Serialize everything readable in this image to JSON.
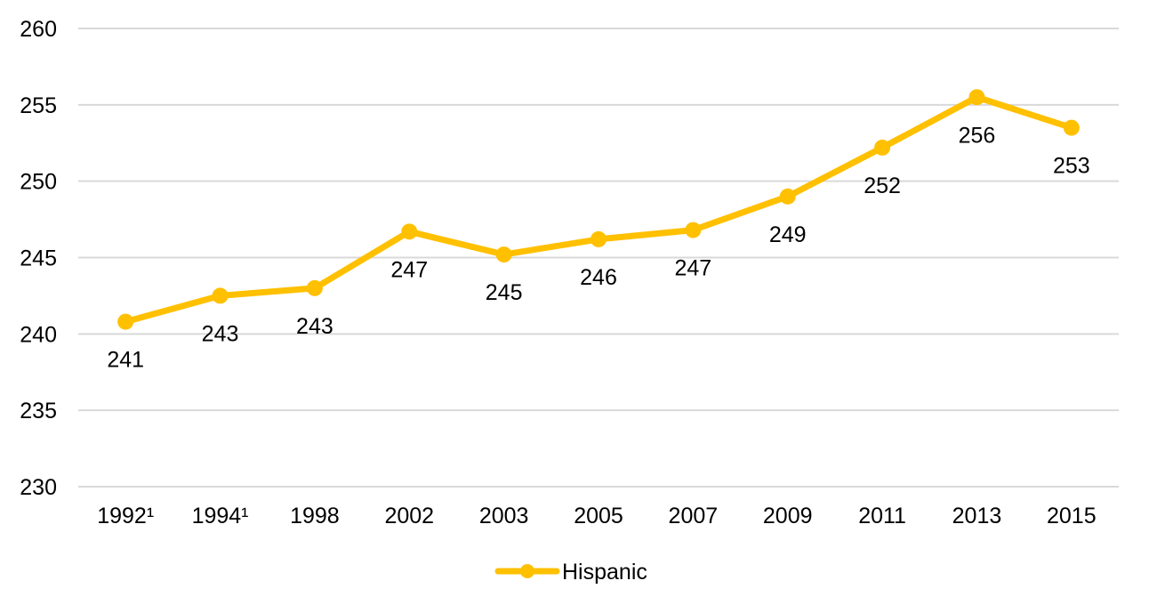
{
  "chart_data": {
    "type": "line",
    "categories": [
      "1992¹",
      "1994¹",
      "1998",
      "2002",
      "2003",
      "2005",
      "2007",
      "2009",
      "2011",
      "2013",
      "2015"
    ],
    "series": [
      {
        "name": "Hispanic",
        "values": [
          240.8,
          242.5,
          243.0,
          246.7,
          245.2,
          246.2,
          246.8,
          249.0,
          252.2,
          255.5,
          253.5
        ],
        "labels": [
          "241",
          "243",
          "243",
          "247",
          "245",
          "246",
          "247",
          "249",
          "252",
          "256",
          "253"
        ],
        "color": "#FFC000"
      }
    ],
    "title": "",
    "xlabel": "",
    "ylabel": "",
    "ylim": [
      230,
      260
    ],
    "yticks": [
      "230",
      "235",
      "240",
      "245",
      "250",
      "255",
      "260"
    ],
    "grid": true,
    "legend_position": "bottom"
  }
}
